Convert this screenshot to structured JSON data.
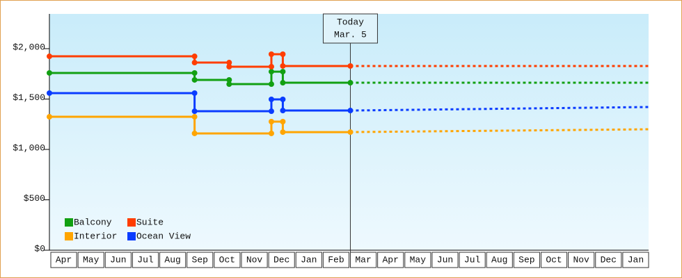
{
  "chart_data": {
    "type": "step",
    "categories": [
      "Apr",
      "May",
      "Jun",
      "Jul",
      "Aug",
      "Sep",
      "Oct",
      "Nov",
      "Dec",
      "Jan",
      "Feb",
      "Mar",
      "Apr",
      "May",
      "Jun",
      "Jul",
      "Aug",
      "Sep",
      "Oct",
      "Nov",
      "Dec",
      "Jan"
    ],
    "xlim": [
      0,
      22
    ],
    "ylim": [
      0,
      2345
    ],
    "yticks": [
      {
        "value": 0,
        "label": "$0"
      },
      {
        "value": 500,
        "label": "$500"
      },
      {
        "value": 1000,
        "label": "$1,000"
      },
      {
        "value": 1500,
        "label": "$1,500"
      },
      {
        "value": 2000,
        "label": "$2,000"
      }
    ],
    "today": {
      "x": 11.05,
      "label": "Today",
      "date": "Mar. 5"
    },
    "legend": "lower left",
    "series": [
      {
        "name": "Balcony",
        "color": "#12a012",
        "x": [
          0,
          5.33,
          5.33,
          6.6,
          6.6,
          8.15,
          8.15,
          8.57,
          8.57,
          11.05
        ],
        "values": [
          1759,
          1759,
          1690,
          1690,
          1648,
          1648,
          1772,
          1772,
          1662,
          1662
        ],
        "forecast": {
          "x": [
            11.05,
            22
          ],
          "values": [
            1662,
            1662
          ]
        }
      },
      {
        "name": "Suite",
        "color": "#ff3d00",
        "x": [
          0,
          5.33,
          5.33,
          6.6,
          6.6,
          8.15,
          8.15,
          8.57,
          8.57,
          11.05
        ],
        "values": [
          1924,
          1924,
          1862,
          1862,
          1821,
          1821,
          1945,
          1945,
          1828,
          1828
        ],
        "forecast": {
          "x": [
            11.05,
            22
          ],
          "values": [
            1828,
            1828
          ]
        }
      },
      {
        "name": "Interior",
        "color": "#ffa500",
        "x": [
          0,
          5.33,
          5.33,
          8.15,
          8.15,
          8.57,
          8.57,
          11.05
        ],
        "values": [
          1324,
          1324,
          1159,
          1159,
          1276,
          1276,
          1172,
          1172
        ],
        "forecast": {
          "x": [
            11.05,
            22
          ],
          "values": [
            1172,
            1200
          ]
        }
      },
      {
        "name": "Ocean View",
        "color": "#0a3cff",
        "x": [
          0,
          5.33,
          5.33,
          8.15,
          8.15,
          8.57,
          8.57,
          11.05
        ],
        "values": [
          1559,
          1559,
          1379,
          1379,
          1497,
          1497,
          1386,
          1386
        ],
        "forecast": {
          "x": [
            11.05,
            22
          ],
          "values": [
            1386,
            1421
          ]
        }
      }
    ]
  }
}
